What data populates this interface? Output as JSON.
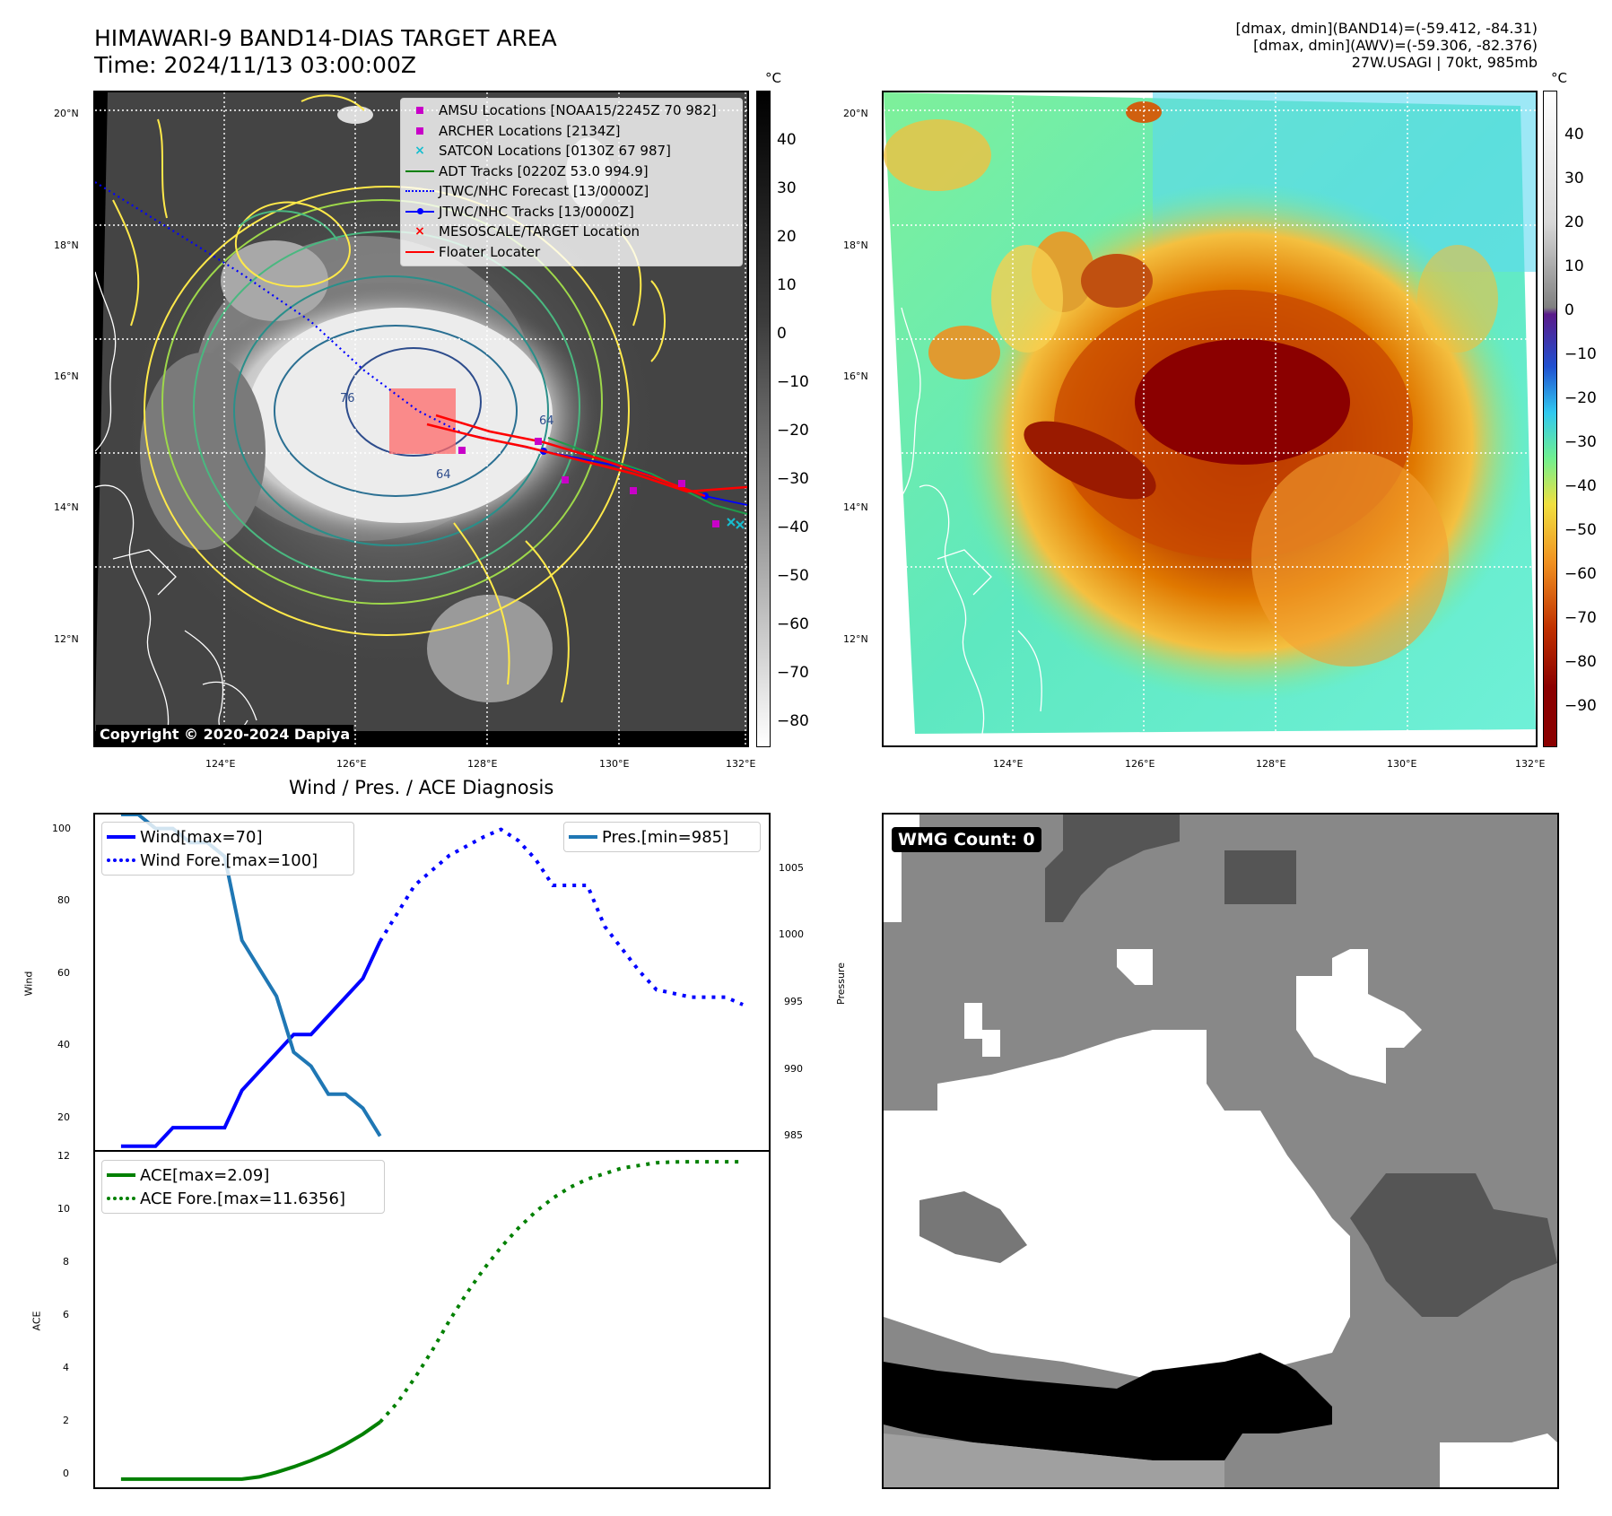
{
  "header": {
    "title_line1": "HIMAWARI-9 BAND14-DIAS TARGET AREA",
    "title_line2": "Time: 2024/11/13 03:00:00Z",
    "stats_line1": "[dmax, dmin](BAND14)=(-59.412, -84.31)",
    "stats_line2": "[dmax, dmin](AWV)=(-59.306, -82.376)",
    "stats_line3": "27W.USAGI | 70kt, 985mb"
  },
  "map": {
    "lat_labels": [
      "20°N",
      "18°N",
      "16°N",
      "14°N",
      "12°N"
    ],
    "lon_labels": [
      "124°E",
      "126°E",
      "128°E",
      "130°E",
      "132°E"
    ],
    "copyright": "Copyright © 2020-2024 Dapiya",
    "contour_labels": [
      "64",
      "64",
      "76"
    ],
    "legend": [
      {
        "label": "AMSU Locations [NOAA15/2245Z 70 982]",
        "symbol": "square",
        "color": "#c800c8"
      },
      {
        "label": "ARCHER Locations [2134Z]",
        "symbol": "square",
        "color": "#c800c8"
      },
      {
        "label": "SATCON Locations [0130Z 67 987]",
        "symbol": "x",
        "color": "#17becf"
      },
      {
        "label": "ADT Tracks [0220Z 53.0 994.9]",
        "symbol": "line",
        "color": "#008000"
      },
      {
        "label": "JTWC/NHC Forecast [13/0000Z]",
        "symbol": "dotted",
        "color": "#0000ff"
      },
      {
        "label": "JTWC/NHC Tracks [13/0000Z]",
        "symbol": "line-dot",
        "color": "#0000ff"
      },
      {
        "label": "MESOSCALE/TARGET Location",
        "symbol": "x",
        "color": "#ff0000"
      },
      {
        "label": "Floater Locater",
        "symbol": "line",
        "color": "#ff0000"
      }
    ]
  },
  "colorbar_gray": {
    "unit": "°C",
    "ticks": [
      "40",
      "30",
      "20",
      "10",
      "0",
      "−10",
      "−20",
      "−30",
      "−40",
      "−50",
      "−60",
      "−70",
      "−80"
    ]
  },
  "colorbar_color": {
    "unit": "°C",
    "ticks": [
      "40",
      "30",
      "20",
      "10",
      "0",
      "−10",
      "−20",
      "−30",
      "−40",
      "−50",
      "−60",
      "−70",
      "−80",
      "−90"
    ]
  },
  "diagnosis": {
    "title": "Wind / Pres. / ACE Diagnosis",
    "wind_ylabel": "Wind",
    "pres_ylabel": "Pressure",
    "ace_ylabel": "ACE",
    "wind_ticks": [
      "100",
      "80",
      "60",
      "40",
      "20"
    ],
    "pres_ticks": [
      "1005",
      "1000",
      "995",
      "990",
      "985"
    ],
    "ace_ticks": [
      "12",
      "10",
      "8",
      "6",
      "4",
      "2",
      "0"
    ],
    "legend_wind": "Wind[max=70]",
    "legend_wind_fore": "Wind Fore.[max=100]",
    "legend_pres": "Pres.[min=985]",
    "legend_ace": "ACE[max=2.09]",
    "legend_ace_fore": "ACE Fore.[max=11.6356]"
  },
  "wmg": {
    "label": "WMG Count: 0"
  },
  "chart_data": [
    {
      "type": "line",
      "title": "Wind / Pres. / ACE Diagnosis",
      "ylabel": "Wind",
      "ylim": [
        14,
        104
      ],
      "series": [
        {
          "name": "Wind[max=70]",
          "x": [
            0,
            1,
            2,
            3,
            4,
            5,
            6,
            7,
            8,
            9,
            10,
            11,
            12,
            13,
            14,
            15
          ],
          "values": [
            15,
            15,
            15,
            20,
            20,
            20,
            20,
            30,
            35,
            40,
            45,
            45,
            50,
            55,
            60,
            70
          ]
        },
        {
          "name": "Wind Fore.[max=100]",
          "x": [
            15,
            17,
            19,
            21,
            22,
            23,
            24,
            25,
            27,
            28,
            29,
            30,
            31,
            33,
            35,
            36
          ],
          "values": [
            70,
            85,
            93,
            98,
            100,
            97,
            92,
            85,
            85,
            74,
            68,
            62,
            57,
            55,
            55,
            53
          ]
        }
      ]
    },
    {
      "type": "line",
      "ylabel": "Pressure",
      "ylim": [
        984,
        1008
      ],
      "series": [
        {
          "name": "Pres.[min=985]",
          "x": [
            0,
            1,
            2,
            3,
            4,
            5,
            6,
            7,
            8,
            9,
            10,
            11,
            12,
            13,
            14,
            15
          ],
          "values": [
            1008,
            1008,
            1007,
            1007,
            1006,
            1006,
            1005,
            999,
            997,
            995,
            991,
            990,
            988,
            988,
            987,
            985
          ]
        }
      ]
    },
    {
      "type": "line",
      "ylabel": "ACE",
      "ylim": [
        -0.3,
        12.0
      ],
      "series": [
        {
          "name": "ACE[max=2.09]",
          "x": [
            0,
            1,
            2,
            3,
            4,
            5,
            6,
            7,
            8,
            9,
            10,
            11,
            12,
            13,
            14,
            15
          ],
          "values": [
            0,
            0,
            0,
            0,
            0,
            0,
            0,
            0,
            0.08,
            0.25,
            0.45,
            0.68,
            0.95,
            1.28,
            1.65,
            2.09
          ]
        },
        {
          "name": "ACE Fore.[max=11.6356]",
          "x": [
            15,
            16,
            17,
            18,
            19,
            20,
            21,
            22,
            23,
            24,
            25,
            26,
            27,
            28,
            29,
            30,
            31,
            32,
            33,
            34,
            35,
            36
          ],
          "values": [
            2.09,
            2.8,
            3.7,
            4.7,
            5.8,
            6.8,
            7.7,
            8.5,
            9.2,
            9.8,
            10.3,
            10.7,
            11.0,
            11.2,
            11.4,
            11.5,
            11.6,
            11.63,
            11.6356,
            11.6356,
            11.6356,
            11.6356
          ]
        }
      ]
    }
  ]
}
